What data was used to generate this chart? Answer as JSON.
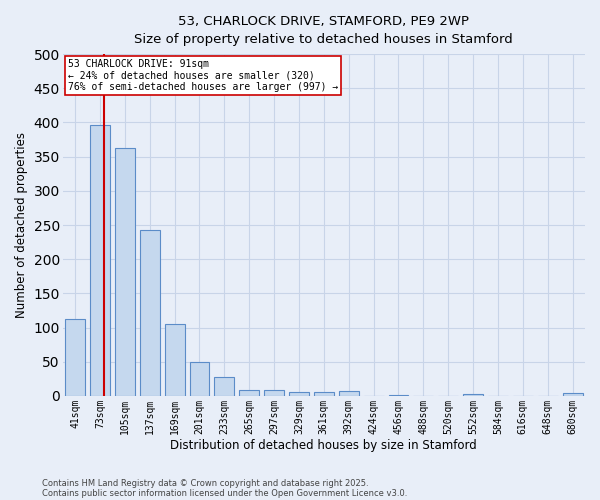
{
  "title_line1": "53, CHARLOCK DRIVE, STAMFORD, PE9 2WP",
  "title_line2": "Size of property relative to detached houses in Stamford",
  "xlabel": "Distribution of detached houses by size in Stamford",
  "ylabel": "Number of detached properties",
  "categories": [
    "41sqm",
    "73sqm",
    "105sqm",
    "137sqm",
    "169sqm",
    "201sqm",
    "233sqm",
    "265sqm",
    "297sqm",
    "329sqm",
    "361sqm",
    "392sqm",
    "424sqm",
    "456sqm",
    "488sqm",
    "520sqm",
    "552sqm",
    "584sqm",
    "616sqm",
    "648sqm",
    "680sqm"
  ],
  "values": [
    112,
    397,
    363,
    243,
    105,
    50,
    28,
    9,
    8,
    6,
    5,
    7,
    0,
    1,
    0,
    0,
    3,
    0,
    0,
    0,
    4
  ],
  "bar_color": "#c5d8ee",
  "bar_edge_color": "#5b8cc8",
  "grid_color": "#c8d4e8",
  "background_color": "#e8eef8",
  "red_line_color": "#cc0000",
  "red_line_x": 1.18,
  "annotation_text": "53 CHARLOCK DRIVE: 91sqm\n← 24% of detached houses are smaller (320)\n76% of semi-detached houses are larger (997) →",
  "annotation_box_color": "#ffffff",
  "annotation_box_edge": "#cc0000",
  "ylim": [
    0,
    500
  ],
  "yticks": [
    0,
    50,
    100,
    150,
    200,
    250,
    300,
    350,
    400,
    450,
    500
  ],
  "footer_line1": "Contains HM Land Registry data © Crown copyright and database right 2025.",
  "footer_line2": "Contains public sector information licensed under the Open Government Licence v3.0."
}
